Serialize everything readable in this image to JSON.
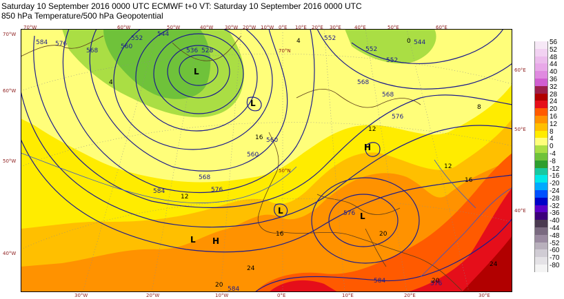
{
  "header": {
    "line1": "Saturday 10 September 2016 0000 UTC  ECMWF  t+0  VT: Saturday 10 September 2016 0000 UTC",
    "line2": "850 hPa Temperature/500 hPa Geopotential"
  },
  "colors": {
    "t_minus4": "#6fc23a",
    "t_0": "#aade44",
    "t_4": "#fffe7a",
    "t_8": "#ffec00",
    "t_12": "#ffbf00",
    "t_16": "#ff9200",
    "t_20": "#ff5a00",
    "t_24": "#e50e1a",
    "t_28": "#b10000",
    "contour": "#1c1c8c",
    "grid_label": "#8b1a1a"
  },
  "legend": [
    {
      "value": "56",
      "color": "#f6e8f6"
    },
    {
      "value": "52",
      "color": "#f2d2f2"
    },
    {
      "value": "48",
      "color": "#ecbcec"
    },
    {
      "value": "44",
      "color": "#e8a8e8"
    },
    {
      "value": "40",
      "color": "#e08ae0"
    },
    {
      "value": "36",
      "color": "#d05ed0"
    },
    {
      "value": "32",
      "color": "#9c1f4a"
    },
    {
      "value": "28",
      "color": "#b10000"
    },
    {
      "value": "24",
      "color": "#e50e1a"
    },
    {
      "value": "20",
      "color": "#ff5a00"
    },
    {
      "value": "16",
      "color": "#ff9200"
    },
    {
      "value": "12",
      "color": "#ffbf00"
    },
    {
      "value": "8",
      "color": "#ffec00"
    },
    {
      "value": "4",
      "color": "#fffe7a"
    },
    {
      "value": "0",
      "color": "#aade44"
    },
    {
      "value": "-4",
      "color": "#6fc23a"
    },
    {
      "value": "-8",
      "color": "#2e9e2e"
    },
    {
      "value": "-12",
      "color": "#18c8a0"
    },
    {
      "value": "-16",
      "color": "#00e8e8"
    },
    {
      "value": "-20",
      "color": "#00aaff"
    },
    {
      "value": "-24",
      "color": "#0050ff"
    },
    {
      "value": "-28",
      "color": "#0000c8"
    },
    {
      "value": "-32",
      "color": "#5a00c8"
    },
    {
      "value": "-36",
      "color": "#3c007a"
    },
    {
      "value": "-40",
      "color": "#4a3a50"
    },
    {
      "value": "-44",
      "color": "#7a6a80"
    },
    {
      "value": "-48",
      "color": "#9a8aa0"
    },
    {
      "value": "-52",
      "color": "#b8b0bc"
    },
    {
      "value": "-60",
      "color": "#d0ccd4"
    },
    {
      "value": "-70",
      "color": "#e4e2e6"
    },
    {
      "value": "-80",
      "color": "#f4f4f4"
    }
  ],
  "top_lon_labels": [
    "70°W",
    "60°W",
    "50°W",
    "40°W",
    "30°W",
    "20°W",
    "10°W",
    "0°E",
    "10°E",
    "20°E",
    "30°E",
    "40°E",
    "50°E",
    "60°E"
  ],
  "bottom_lon_labels": [
    "30°W",
    "20°W",
    "10°W",
    "0°E",
    "10°E",
    "20°E",
    "30°E"
  ],
  "left_lat_labels": [
    "70°W",
    "60°W",
    "50°W",
    "40°W"
  ],
  "right_lat_labels": [
    "60°E",
    "50°E",
    "40°E"
  ],
  "inner_lat_labels": [
    "70°N",
    "50°N"
  ],
  "contour_labels": [
    "584",
    "576",
    "568",
    "560",
    "552",
    "544",
    "536",
    "528",
    "552",
    "544",
    "552",
    "560",
    "568",
    "576",
    "584",
    "560",
    "568",
    "576",
    "584",
    "576",
    "584",
    "576",
    "568",
    "552"
  ],
  "temp_labels": [
    "4",
    "4",
    "8",
    "12",
    "12",
    "12",
    "16",
    "16",
    "16",
    "20",
    "20",
    "20",
    "24",
    "24",
    "0"
  ],
  "pressure_centers": [
    "L",
    "L",
    "L",
    "L",
    "L",
    "H",
    "H"
  ]
}
